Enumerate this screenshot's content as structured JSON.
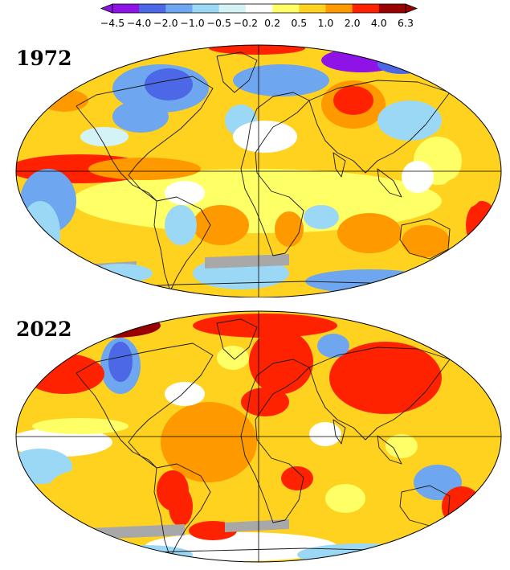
{
  "legend": {
    "ticks": [
      "−4.5",
      "−4.0",
      "−2.0",
      "−1.0",
      "−0.5",
      "−0.2",
      "0.2",
      "0.5",
      "1.0",
      "2.0",
      "4.0",
      "6.3"
    ],
    "colors": [
      "#8e13e6",
      "#4c68e6",
      "#6ea6ef",
      "#9ad8f5",
      "#d4f3f6",
      "#ffffff",
      "#ffff66",
      "#ffd21f",
      "#ff9900",
      "#ff2200",
      "#990000"
    ]
  },
  "maps": [
    {
      "year": "1972"
    },
    {
      "year": "2022"
    }
  ],
  "palette": {
    "gray": "#a8a8a8"
  }
}
